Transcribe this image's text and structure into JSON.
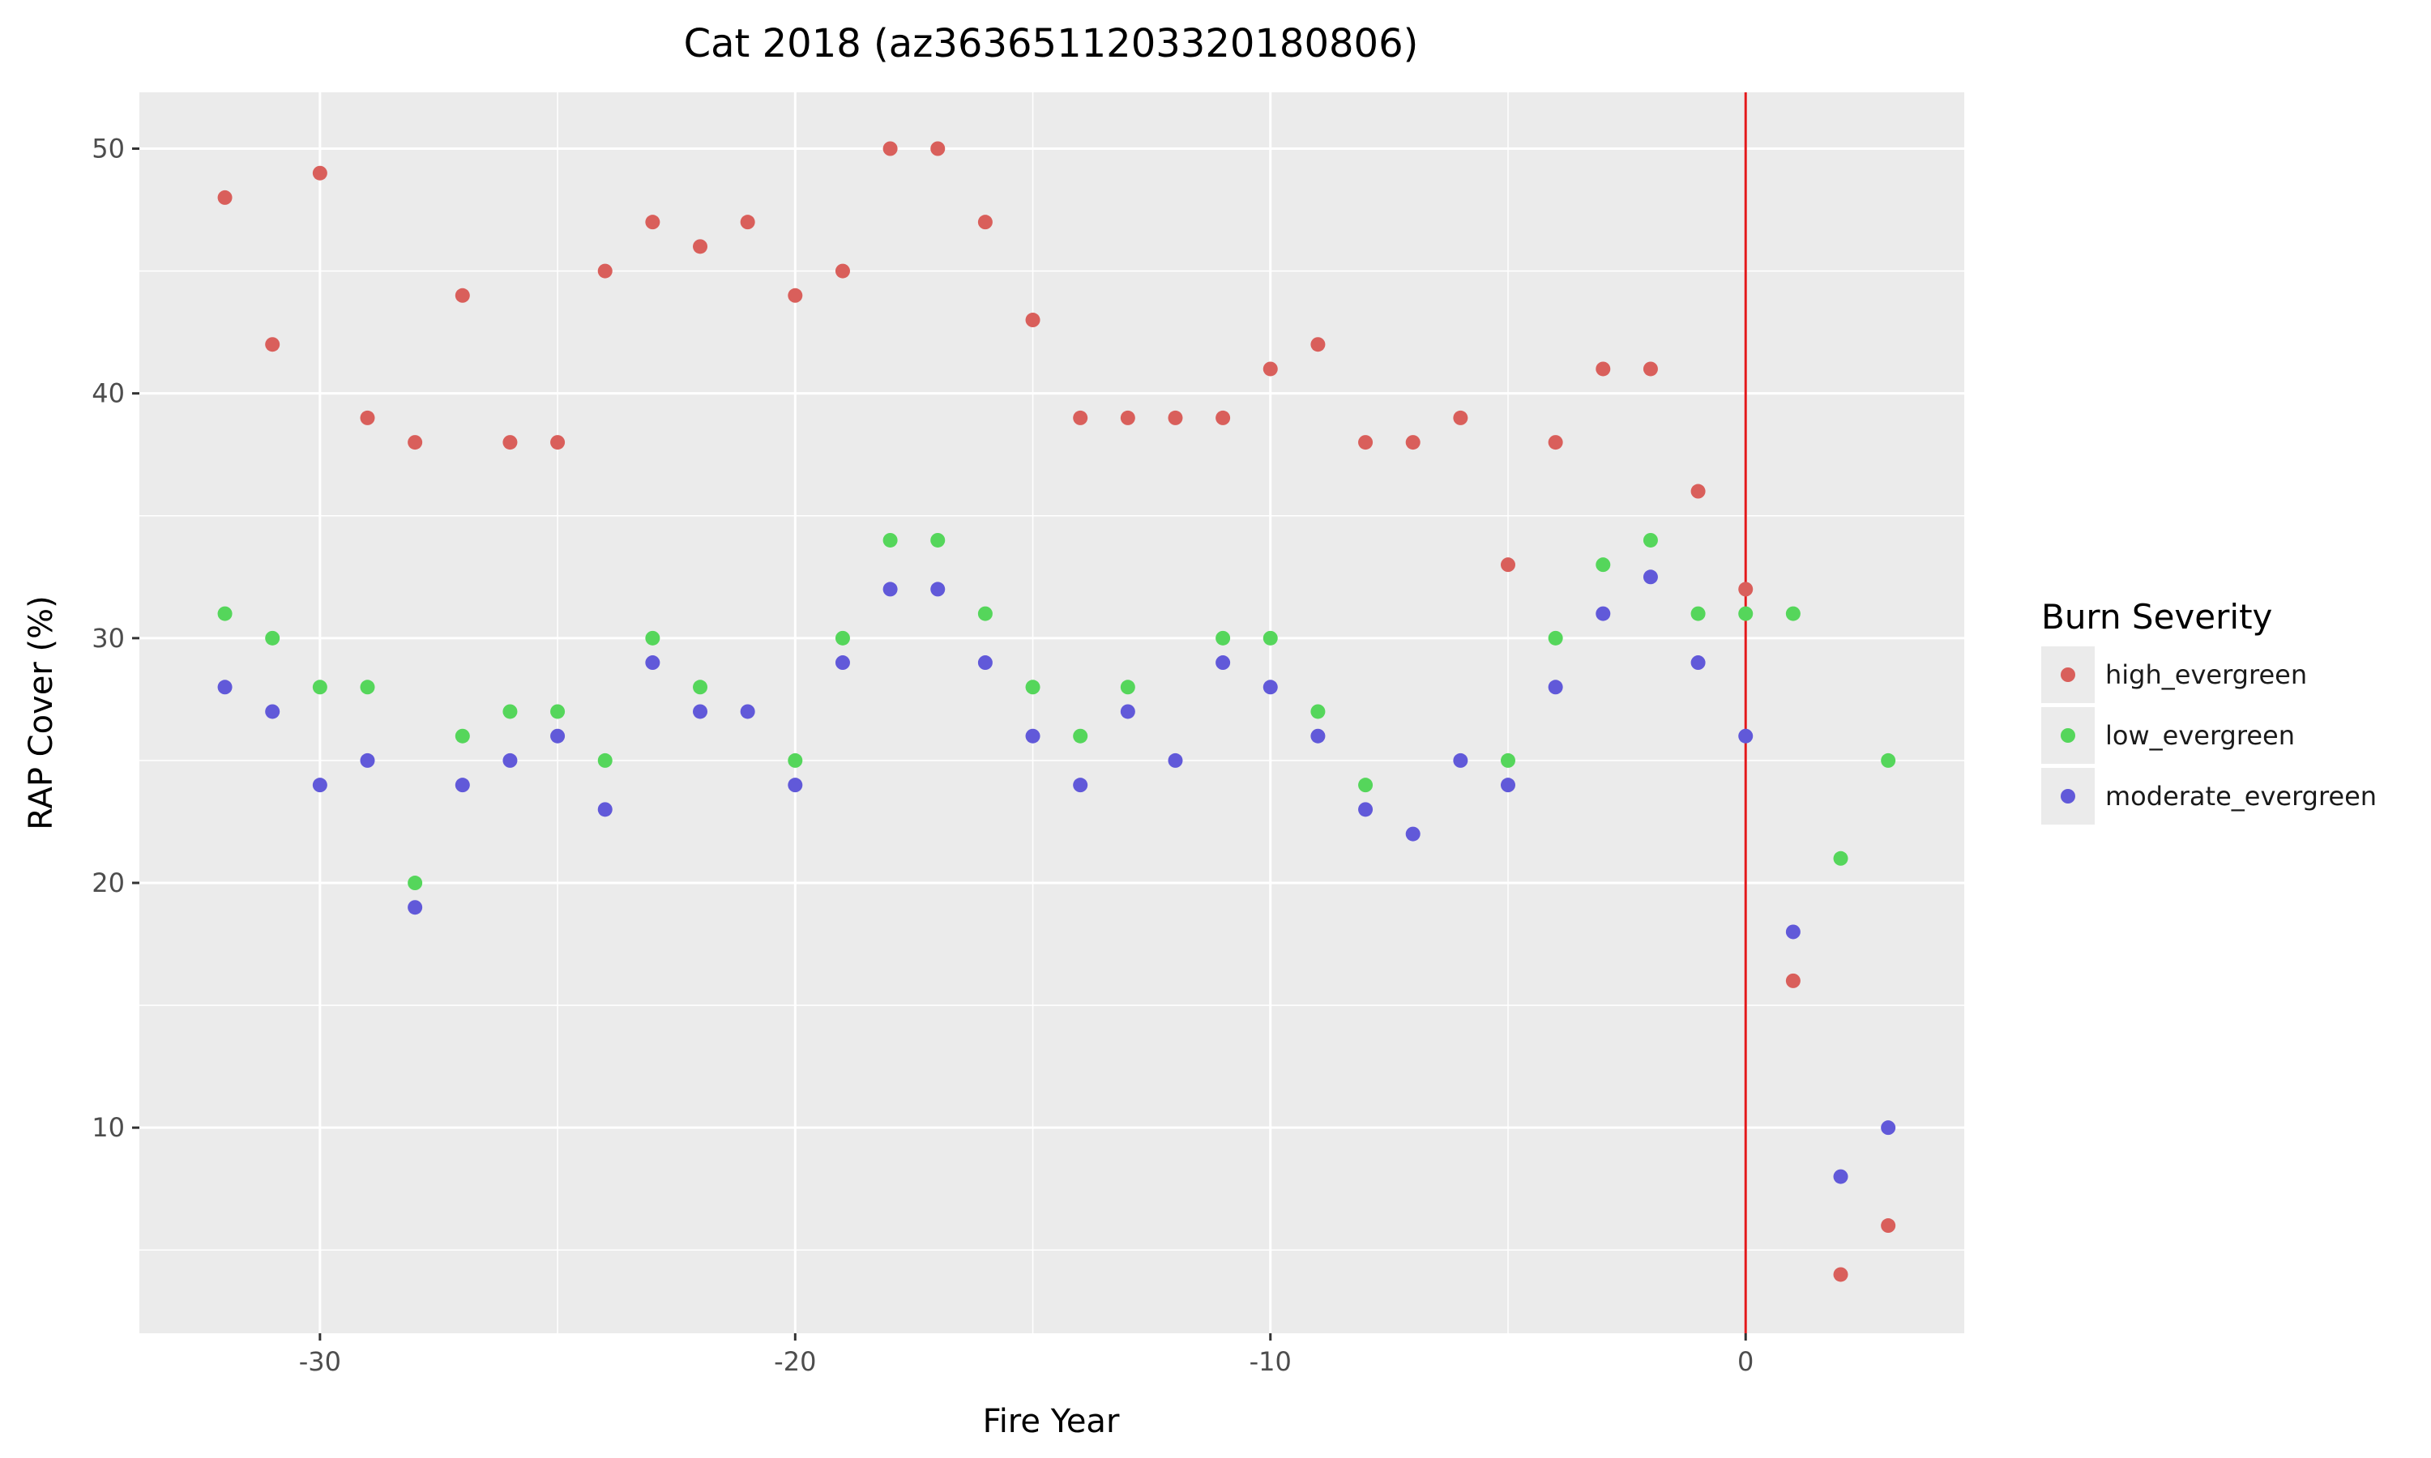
{
  "chart_data": {
    "type": "scatter",
    "title": "Cat 2018 (az3636511203320180806)",
    "xlabel": "Fire Year",
    "ylabel": "RAP Cover (%)",
    "xlim": [
      -33.8,
      4.6
    ],
    "ylim": [
      1.6,
      52.3
    ],
    "x_ticks": [
      -30,
      -20,
      -10,
      0
    ],
    "x_tick_labels": [
      "-30",
      "-20",
      "-10",
      "0"
    ],
    "y_ticks": [
      10,
      20,
      30,
      40,
      50
    ],
    "y_tick_labels": [
      "10",
      "20",
      "30",
      "40",
      "50"
    ],
    "grid": true,
    "reference_line": {
      "x": 0,
      "color": "#e31a1c"
    },
    "legend": {
      "title": "Burn Severity",
      "position": "right"
    },
    "x": [
      -32,
      -31,
      -30,
      -29,
      -28,
      -27,
      -26,
      -25,
      -24,
      -23,
      -22,
      -21,
      -20,
      -19,
      -18,
      -17,
      -16,
      -15,
      -14,
      -13,
      -12,
      -11,
      -10,
      -9,
      -8,
      -7,
      -6,
      -5,
      -4,
      -3,
      -2,
      -1,
      0,
      1,
      2,
      3
    ],
    "series": [
      {
        "name": "high_evergreen",
        "color": "#d95f5b",
        "values": [
          48,
          42,
          49,
          39,
          38,
          44,
          38,
          38,
          45,
          47,
          46,
          47,
          44,
          45,
          50,
          50,
          47,
          43,
          39,
          39,
          39,
          39,
          41,
          42,
          38,
          38,
          39,
          33,
          38,
          41,
          41,
          36,
          32,
          16,
          4,
          6
        ]
      },
      {
        "name": "low_evergreen",
        "color": "#55d65b",
        "values": [
          31,
          30,
          28,
          28,
          20,
          26,
          27,
          27,
          25,
          30,
          28,
          null,
          25,
          30,
          34,
          34,
          31,
          28,
          26,
          28,
          null,
          30,
          30,
          27,
          24,
          null,
          null,
          25,
          30,
          33,
          34,
          31,
          31,
          31,
          21,
          25
        ]
      },
      {
        "name": "moderate_evergreen",
        "color": "#6159d9",
        "values": [
          28,
          27,
          24,
          25,
          19,
          24,
          25,
          26,
          23,
          29,
          27,
          27,
          24,
          29,
          32,
          32,
          29,
          26,
          24,
          27,
          25,
          29,
          28,
          26,
          23,
          22,
          25,
          24,
          28,
          31,
          32.5,
          29,
          26,
          18,
          8,
          10
        ]
      }
    ]
  }
}
